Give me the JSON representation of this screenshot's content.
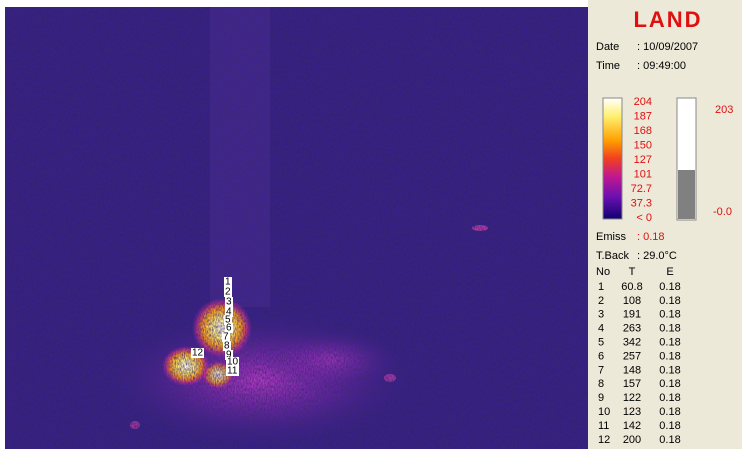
{
  "logo": "LAND",
  "date": {
    "label": "Date",
    "value": ": 10/09/2007"
  },
  "time": {
    "label": "Time",
    "value": ": 09:49:00"
  },
  "scale_labels": [
    "204",
    "187",
    "168",
    "150",
    "127",
    "101",
    "72.7",
    "37.3",
    "< 0"
  ],
  "gauge": {
    "max": "203",
    "min": "-0.0"
  },
  "emiss": {
    "label": "Emiss",
    "value": ": 0.18"
  },
  "tback": {
    "label": "T.Back",
    "value": ": 29.0°C"
  },
  "table": {
    "headers": [
      "No",
      "T",
      "E"
    ],
    "rows": [
      [
        "1",
        "60.8",
        "0.18"
      ],
      [
        "2",
        "108",
        "0.18"
      ],
      [
        "3",
        "191",
        "0.18"
      ],
      [
        "4",
        "263",
        "0.18"
      ],
      [
        "5",
        "342",
        "0.18"
      ],
      [
        "6",
        "257",
        "0.18"
      ],
      [
        "7",
        "148",
        "0.18"
      ],
      [
        "8",
        "157",
        "0.18"
      ],
      [
        "9",
        "122",
        "0.18"
      ],
      [
        "10",
        "123",
        "0.18"
      ],
      [
        "11",
        "142",
        "0.18"
      ],
      [
        "12",
        "200",
        "0.18"
      ]
    ]
  },
  "image_markers": [
    "1",
    "2",
    "3",
    "4",
    "5",
    "6",
    "7",
    "8",
    "9",
    "10",
    "11",
    "12"
  ]
}
